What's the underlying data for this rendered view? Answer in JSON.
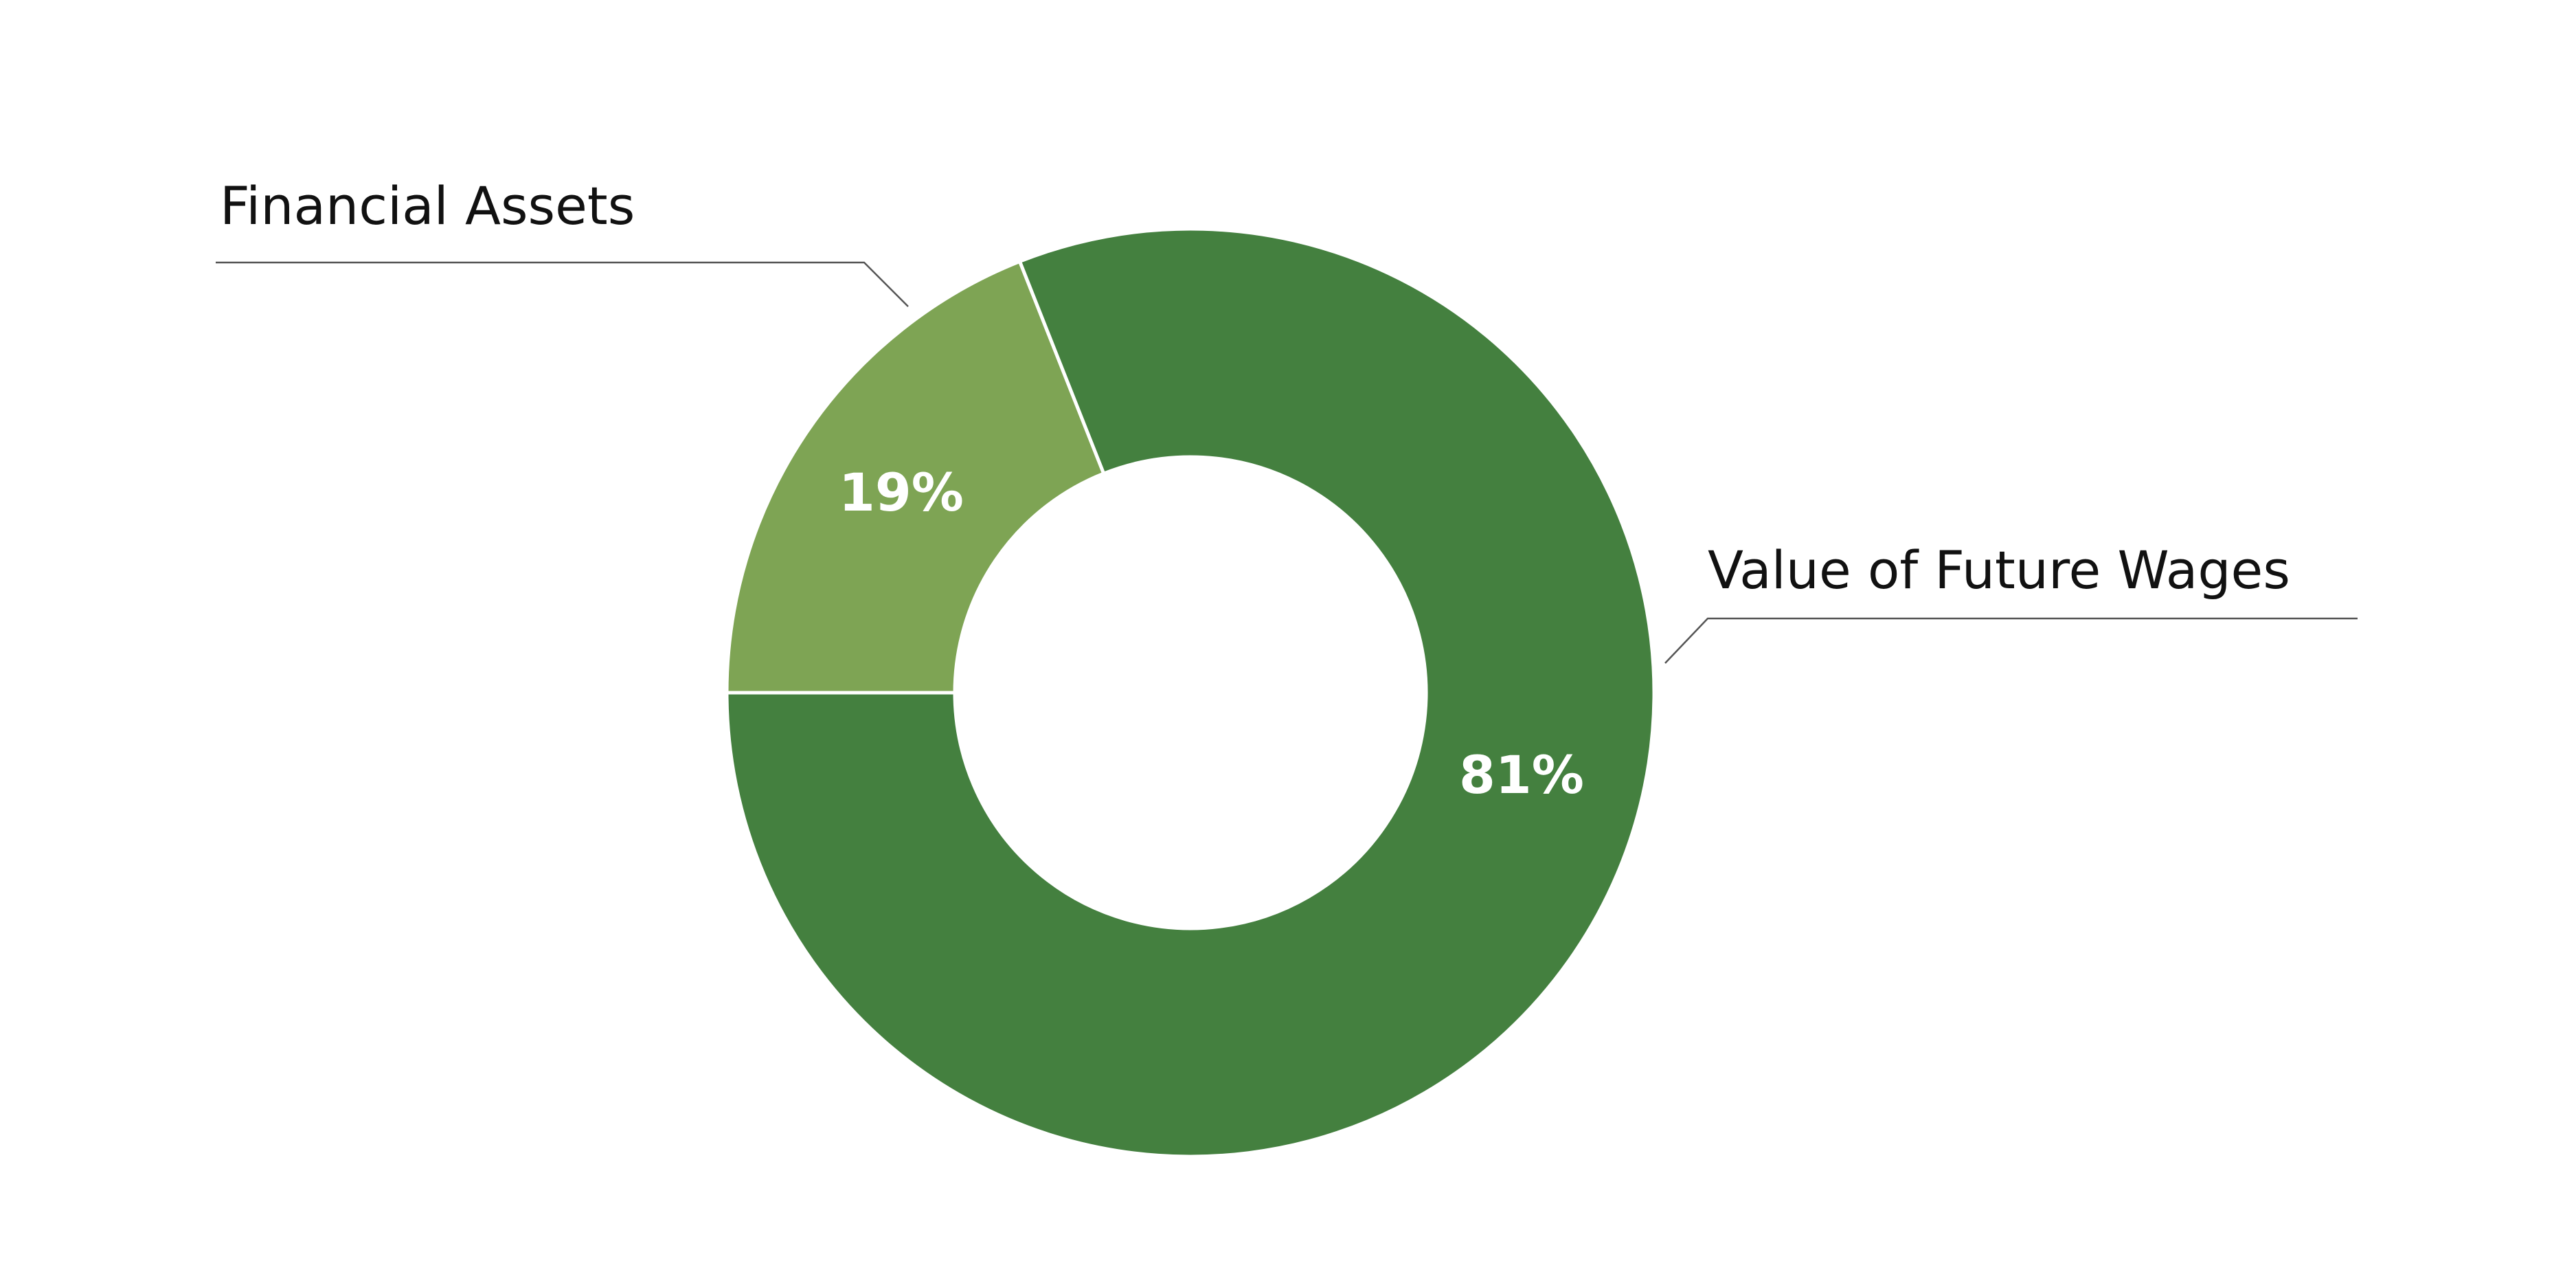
{
  "chart_data": {
    "type": "pie",
    "donut": true,
    "categories": [
      "Financial Assets",
      "Value of Future Wages"
    ],
    "values": [
      19,
      81
    ],
    "value_labels": [
      "19%",
      "81%"
    ],
    "colors": [
      "#7ea454",
      "#44803f"
    ]
  }
}
